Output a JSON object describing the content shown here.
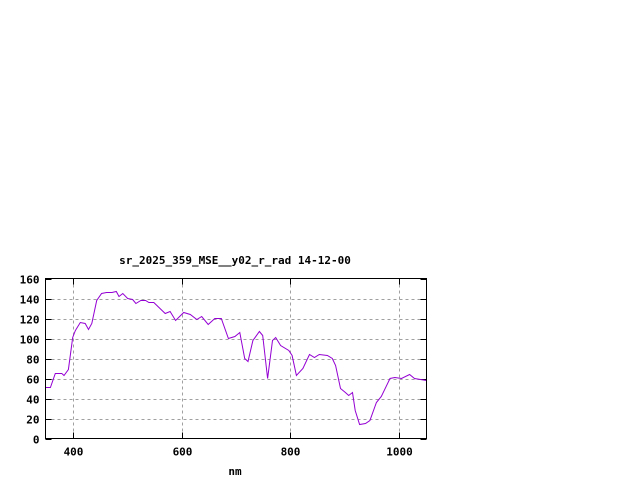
{
  "chart_data": {
    "type": "line",
    "title": "sr_2025_359_MSE__y02_r_rad 14-12-00",
    "xlabel": "nm",
    "ylabel": "",
    "xlim": [
      350,
      1050
    ],
    "ylim": [
      0,
      160
    ],
    "xticks": [
      400,
      600,
      800,
      1000
    ],
    "yticks": [
      0,
      20,
      40,
      60,
      80,
      100,
      120,
      140,
      160
    ],
    "grid": true,
    "legend": "none",
    "line_color": "#9400d3",
    "series": [
      {
        "x": [
          350,
          359,
          368,
          380,
          384,
          392,
          400,
          405,
          414,
          423,
          429,
          435,
          444,
          453,
          462,
          472,
          480,
          485,
          492,
          501,
          510,
          516,
          525,
          534,
          540,
          549,
          570,
          579,
          589,
          604,
          616,
          628,
          637,
          649,
          661,
          673,
          686,
          698,
          707,
          716,
          722,
          731,
          743,
          749,
          758,
          767,
          773,
          782,
          797,
          803,
          811,
          823,
          835,
          844,
          853,
          868,
          877,
          883,
          892,
          901,
          907,
          914,
          919,
          927,
          938,
          946,
          958,
          967,
          983,
          992,
          1004,
          1019,
          1028,
          1050
        ],
        "y": [
          51,
          51,
          65,
          65,
          63,
          69,
          101,
          108,
          116,
          115,
          109,
          115,
          138,
          145,
          146,
          146,
          147,
          142,
          145,
          140,
          139,
          135,
          138,
          138,
          136,
          136,
          125,
          127,
          118,
          126,
          124,
          119,
          122,
          114,
          120,
          120,
          100,
          102,
          106,
          80,
          77,
          98,
          107,
          103,
          60,
          98,
          101,
          93,
          88,
          83,
          63,
          70,
          84,
          81,
          84,
          83,
          80,
          73,
          50,
          46,
          43,
          46,
          28,
          14,
          15,
          18,
          36,
          42,
          60,
          61,
          60,
          64,
          60,
          58
        ]
      }
    ]
  }
}
